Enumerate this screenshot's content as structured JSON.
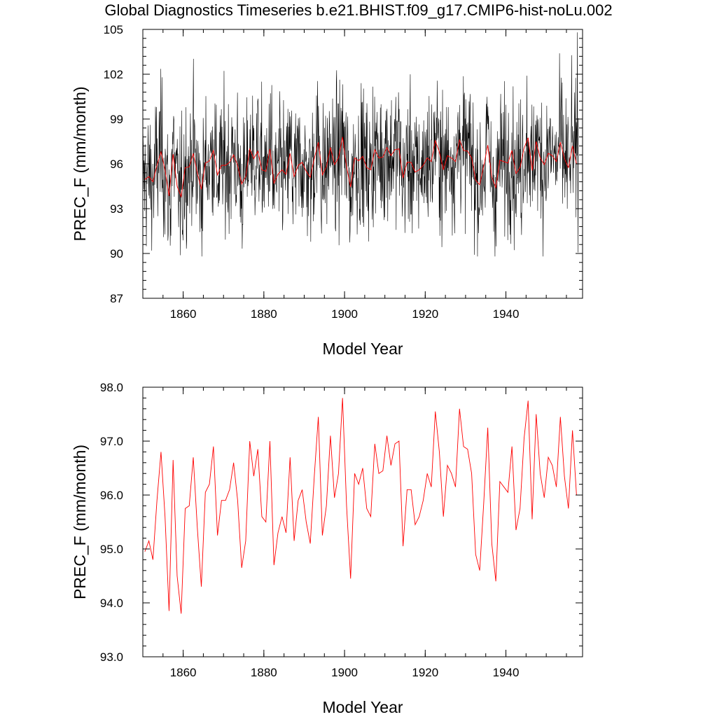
{
  "title": "Global Diagnostics Timeseries b.e21.BHIST.f09_g17.CMIP6-hist-noLu.002",
  "colors": {
    "monthly": "#000000",
    "annual": "#ff0000",
    "axis": "#000000"
  },
  "chart_data": [
    {
      "type": "line",
      "xlabel": "Model Year",
      "ylabel": "PREC_F (mm/month)",
      "xlim": [
        1850,
        1959
      ],
      "ylim": [
        87,
        105
      ],
      "xticks": [
        "1860",
        "1880",
        "1900",
        "1920",
        "1940"
      ],
      "yticks": [
        "87",
        "90",
        "93",
        "96",
        "99",
        "102",
        "105"
      ],
      "series": [
        {
          "color": "#000000",
          "style": "monthly values",
          "count": 1320,
          "range_approx": [
            89.8,
            104.8
          ]
        },
        {
          "color": "#ff0000",
          "style": "annual means (same as lower panel)"
        }
      ]
    },
    {
      "type": "line",
      "xlabel": "Model Year",
      "ylabel": "PREC_F (mm/month)",
      "xlim": [
        1850,
        1959
      ],
      "ylim": [
        93.0,
        98.0
      ],
      "xticks": [
        "1860",
        "1880",
        "1900",
        "1920",
        "1940"
      ],
      "yticks": [
        "93.0",
        "94.0",
        "95.0",
        "96.0",
        "97.0",
        "98.0"
      ],
      "series": [
        {
          "color": "#ff0000",
          "x_start": 1850,
          "values": [
            94.95,
            95.15,
            94.8,
            95.9,
            96.8,
            95.6,
            93.85,
            96.65,
            94.5,
            93.8,
            95.75,
            95.8,
            96.7,
            95.4,
            94.3,
            96.05,
            96.2,
            96.9,
            95.25,
            95.9,
            95.9,
            96.1,
            96.6,
            95.9,
            94.65,
            95.15,
            97.0,
            96.35,
            96.85,
            95.6,
            95.5,
            97.0,
            94.7,
            95.3,
            95.6,
            95.3,
            96.7,
            95.15,
            95.9,
            96.1,
            95.5,
            95.1,
            96.35,
            97.45,
            95.25,
            95.8,
            97.1,
            95.95,
            96.4,
            97.8,
            95.8,
            94.45,
            96.4,
            96.2,
            96.5,
            95.75,
            95.6,
            96.95,
            96.4,
            96.45,
            97.1,
            96.55,
            96.95,
            97.0,
            95.05,
            96.1,
            96.1,
            95.45,
            95.6,
            95.9,
            96.4,
            96.15,
            97.55,
            96.8,
            95.6,
            96.55,
            96.4,
            96.15,
            97.6,
            96.9,
            96.85,
            96.4,
            94.9,
            94.6,
            95.85,
            97.25,
            95.1,
            94.4,
            96.25,
            96.15,
            96.05,
            96.9,
            95.35,
            95.75,
            97.05,
            97.75,
            95.55,
            97.5,
            96.4,
            95.95,
            96.7,
            96.55,
            96.15,
            97.45,
            96.35,
            95.75,
            97.2,
            96.0
          ]
        }
      ]
    }
  ]
}
